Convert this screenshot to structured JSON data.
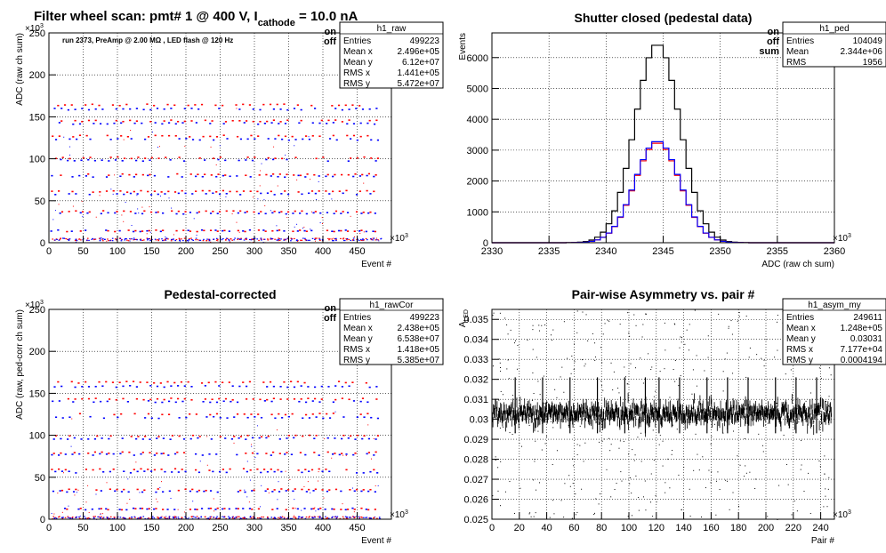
{
  "header": {
    "title_main": "Filter wheel scan: pmt#   1 @   400 V, I",
    "title_sub": "cathode",
    "title_end": " = 10.0 nA"
  },
  "colors": {
    "on": "#ff0000",
    "off": "#0000ff",
    "sum": "#000000"
  },
  "panels": {
    "p1": {
      "title": "",
      "note": "run 2373, PreAmp @ 2.00 MΩ , LED flash @  120 Hz",
      "ylabel": "ADC (raw ch sum)",
      "xlabel": "Event #",
      "y_exp": "×10",
      "y_exp_pow": "3",
      "x_exp": "×10",
      "x_exp_pow": "3",
      "legend": {
        "on": "on",
        "off": "off"
      },
      "stats": {
        "name": "h1_raw",
        "rows": [
          [
            "Entries",
            "499223"
          ],
          [
            "Mean x",
            "2.496e+05"
          ],
          [
            "Mean y",
            "6.12e+07"
          ],
          [
            "RMS x",
            "1.441e+05"
          ],
          [
            "RMS y",
            "5.472e+07"
          ]
        ]
      }
    },
    "p2": {
      "title": "Shutter closed (pedestal data)",
      "ylabel": "Events",
      "xlabel": "ADC (raw ch sum)",
      "x_exp": "×10",
      "x_exp_pow": "3",
      "legend": {
        "on": "on",
        "off": "off",
        "sum": "sum"
      },
      "stats": {
        "name": "h1_ped",
        "rows": [
          [
            "Entries",
            "104049"
          ],
          [
            "Mean",
            "2.344e+06"
          ],
          [
            "RMS",
            "1956"
          ]
        ]
      }
    },
    "p3": {
      "title": "Pedestal-corrected",
      "ylabel": "ADC (raw, ped-corr ch sum)",
      "xlabel": "Event #",
      "y_exp": "×10",
      "y_exp_pow": "3",
      "x_exp": "×10",
      "x_exp_pow": "3",
      "legend": {
        "on": "on",
        "off": "off"
      },
      "stats": {
        "name": "h1_rawCor",
        "rows": [
          [
            "Entries",
            "499223"
          ],
          [
            "Mean x",
            "2.438e+05"
          ],
          [
            "Mean y",
            "6.538e+07"
          ],
          [
            "RMS x",
            "1.418e+05"
          ],
          [
            "RMS y",
            "5.385e+07"
          ]
        ]
      }
    },
    "p4": {
      "title": "Pair-wise Asymmetry vs. pair #",
      "ylabel": "A",
      "ylabel_sub": "LED",
      "xlabel": "Pair #",
      "x_exp": "×10",
      "x_exp_pow": "3",
      "stats": {
        "name": "h1_asym_my",
        "rows": [
          [
            "Entries",
            "249611"
          ],
          [
            "Mean x",
            "1.248e+05"
          ],
          [
            "Mean y",
            "0.03031"
          ],
          [
            "RMS x",
            "7.177e+04"
          ],
          [
            "RMS y",
            "0.0004194"
          ]
        ]
      }
    }
  },
  "chart_data": [
    {
      "type": "scatter",
      "title": "",
      "xlabel": "Event #",
      "ylabel": "ADC (raw ch sum)",
      "xlim": [
        0,
        500
      ],
      "ylim": [
        0,
        250
      ],
      "x_ticks": [
        0,
        50,
        100,
        150,
        200,
        250,
        300,
        350,
        400,
        450
      ],
      "y_ticks": [
        0,
        50,
        100,
        150,
        200,
        250
      ],
      "grid": true,
      "legend": "top-right",
      "series": [
        {
          "name": "on",
          "levels": [
            3,
            15,
            38,
            62,
            82,
            102,
            128,
            146,
            165
          ]
        },
        {
          "name": "off",
          "levels": [
            3,
            15,
            36,
            59,
            80,
            99,
            124,
            143,
            160
          ]
        }
      ]
    },
    {
      "type": "line",
      "title": "Shutter closed (pedestal data)",
      "xlabel": "ADC (raw ch sum)",
      "ylabel": "Events",
      "xlim": [
        2330,
        2360
      ],
      "ylim": [
        0,
        6800
      ],
      "x_ticks": [
        2330,
        2335,
        2340,
        2345,
        2350,
        2355,
        2360
      ],
      "y_ticks": [
        0,
        1000,
        2000,
        3000,
        4000,
        5000,
        6000
      ],
      "grid": true,
      "legend": "top-right",
      "series": [
        {
          "name": "sum",
          "mean": 2344.5,
          "sigma": 1.96,
          "peak": 6450
        },
        {
          "name": "on",
          "mean": 2344.5,
          "sigma": 1.96,
          "peak": 3250
        },
        {
          "name": "off",
          "mean": 2344.5,
          "sigma": 1.96,
          "peak": 3300
        }
      ]
    },
    {
      "type": "scatter",
      "title": "Pedestal-corrected",
      "xlabel": "Event #",
      "ylabel": "ADC (raw, ped-corr ch sum)",
      "xlim": [
        0,
        500
      ],
      "ylim": [
        0,
        250
      ],
      "x_ticks": [
        0,
        50,
        100,
        150,
        200,
        250,
        300,
        350,
        400,
        450
      ],
      "y_ticks": [
        0,
        50,
        100,
        150,
        200,
        250
      ],
      "grid": true,
      "legend": "top-right",
      "series": [
        {
          "name": "on",
          "levels": [
            1,
            13,
            36,
            60,
            80,
            100,
            126,
            144,
            164
          ]
        },
        {
          "name": "off",
          "levels": [
            1,
            13,
            34,
            57,
            78,
            97,
            122,
            141,
            159
          ]
        }
      ]
    },
    {
      "type": "scatter",
      "title": "Pair-wise Asymmetry vs. pair #",
      "xlabel": "Pair #",
      "ylabel": "A_LED",
      "xlim": [
        0,
        250
      ],
      "ylim": [
        0.025,
        0.0355
      ],
      "x_ticks": [
        0,
        20,
        40,
        60,
        80,
        100,
        120,
        140,
        160,
        180,
        200,
        220,
        240
      ],
      "y_ticks": [
        0.025,
        0.026,
        0.027,
        0.028,
        0.029,
        0.03,
        0.031,
        0.032,
        0.033,
        0.034,
        0.035
      ],
      "grid": true,
      "series": [
        {
          "name": "",
          "center": 0.0303,
          "band": 0.0005,
          "spike_x": [
            17,
            37,
            57,
            77,
            97,
            112,
            122,
            137,
            157,
            172,
            187,
            207,
            222,
            237
          ]
        }
      ]
    }
  ]
}
